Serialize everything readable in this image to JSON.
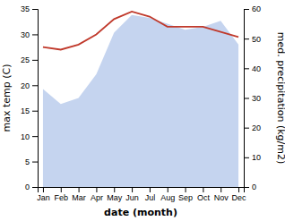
{
  "chart_data": {
    "type": "line",
    "categories": [
      "Jan",
      "Feb",
      "Mar",
      "Apr",
      "May",
      "Jun",
      "Jul",
      "Aug",
      "Sep",
      "Oct",
      "Nov",
      "Dec"
    ],
    "xlabel": "date (month)",
    "ylabel": "max temp (C)",
    "y2label": "med. precipitation (kg/m2)",
    "series": [
      {
        "type": "area",
        "axis": "y2",
        "color": "#c5d4ef",
        "values": [
          33.0,
          28.0,
          30.0,
          38.0,
          52.0,
          58.0,
          57.0,
          55.0,
          53.0,
          54.0,
          56.0,
          48.0
        ]
      },
      {
        "type": "line",
        "axis": "y",
        "color": "#c0392b",
        "values": [
          27.5,
          27.0,
          28.0,
          30.0,
          33.0,
          34.5,
          33.5,
          31.5,
          31.5,
          31.5,
          30.5,
          29.5
        ]
      }
    ],
    "ylim": [
      0,
      35
    ],
    "yticks": [
      0,
      5,
      10,
      15,
      20,
      25,
      30,
      35
    ],
    "y2lim": [
      0,
      60
    ],
    "y2ticks": [
      0,
      10,
      20,
      30,
      40,
      50,
      60
    ],
    "grid": false
  }
}
